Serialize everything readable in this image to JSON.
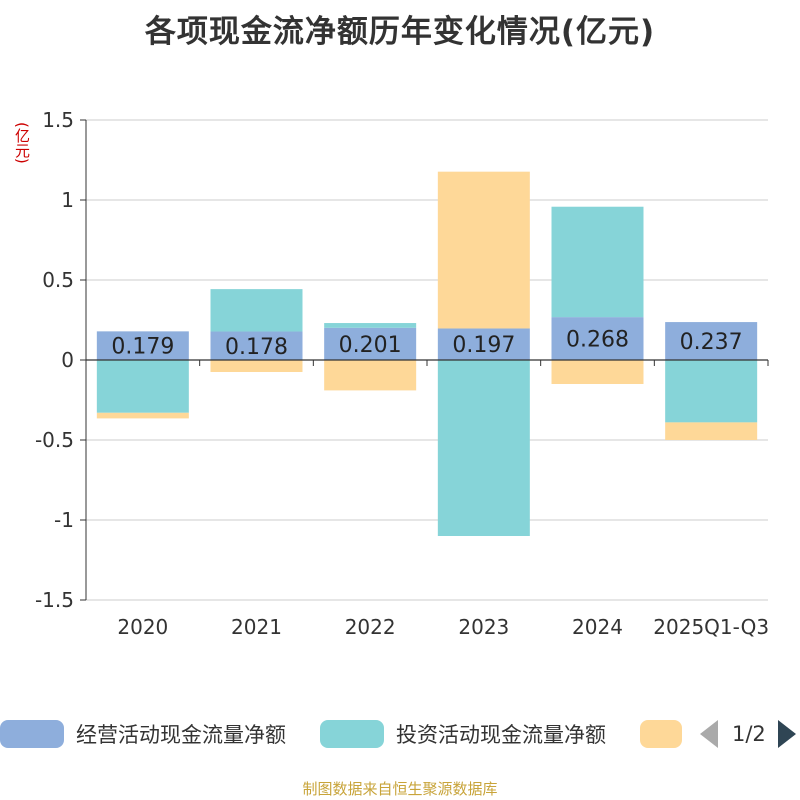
{
  "title": "各项现金流净额历年变化情况(亿元)",
  "unit_label": "(亿元)",
  "source_text": "制图数据来自恒生聚源数据库",
  "legend": {
    "items": [
      {
        "label": "经营活动现金流量净额",
        "color": "#8eaedc"
      },
      {
        "label": "投资活动现金流量净额",
        "color": "#86d4d8"
      },
      {
        "label": "",
        "color": "#fed898"
      }
    ],
    "page_text": "1/2"
  },
  "chart_data": {
    "type": "bar",
    "stacked": true,
    "title": "各项现金流净额历年变化情况(亿元)",
    "ylabel": "(亿元)",
    "categories": [
      "2020",
      "2021",
      "2022",
      "2023",
      "2024",
      "2025Q1-Q3"
    ],
    "ylim": [
      -1.5,
      1.5
    ],
    "yticks": [
      1.5,
      1,
      0.5,
      0,
      -0.5,
      -1,
      -1.5
    ],
    "ytick_labels": [
      "1.5",
      "1",
      "0.5",
      "0",
      "-0.5",
      "-1",
      "-1.5"
    ],
    "grid": true,
    "legend_position": "bottom",
    "series": [
      {
        "name": "经营活动现金流量净额",
        "color": "#8eaedc",
        "values": [
          0.179,
          0.178,
          0.201,
          0.197,
          0.268,
          0.237
        ],
        "data_labels": [
          "0.179",
          "0.178",
          "0.201",
          "0.197",
          "0.268",
          "0.237"
        ]
      },
      {
        "name": "投资活动现金流量净额",
        "color": "#86d4d8",
        "values": [
          -0.33,
          0.265,
          0.03,
          -1.1,
          0.69,
          -0.39
        ]
      },
      {
        "color": "#fed898",
        "values": [
          -0.035,
          -0.075,
          -0.19,
          0.98,
          -0.15,
          -0.11
        ]
      }
    ]
  }
}
